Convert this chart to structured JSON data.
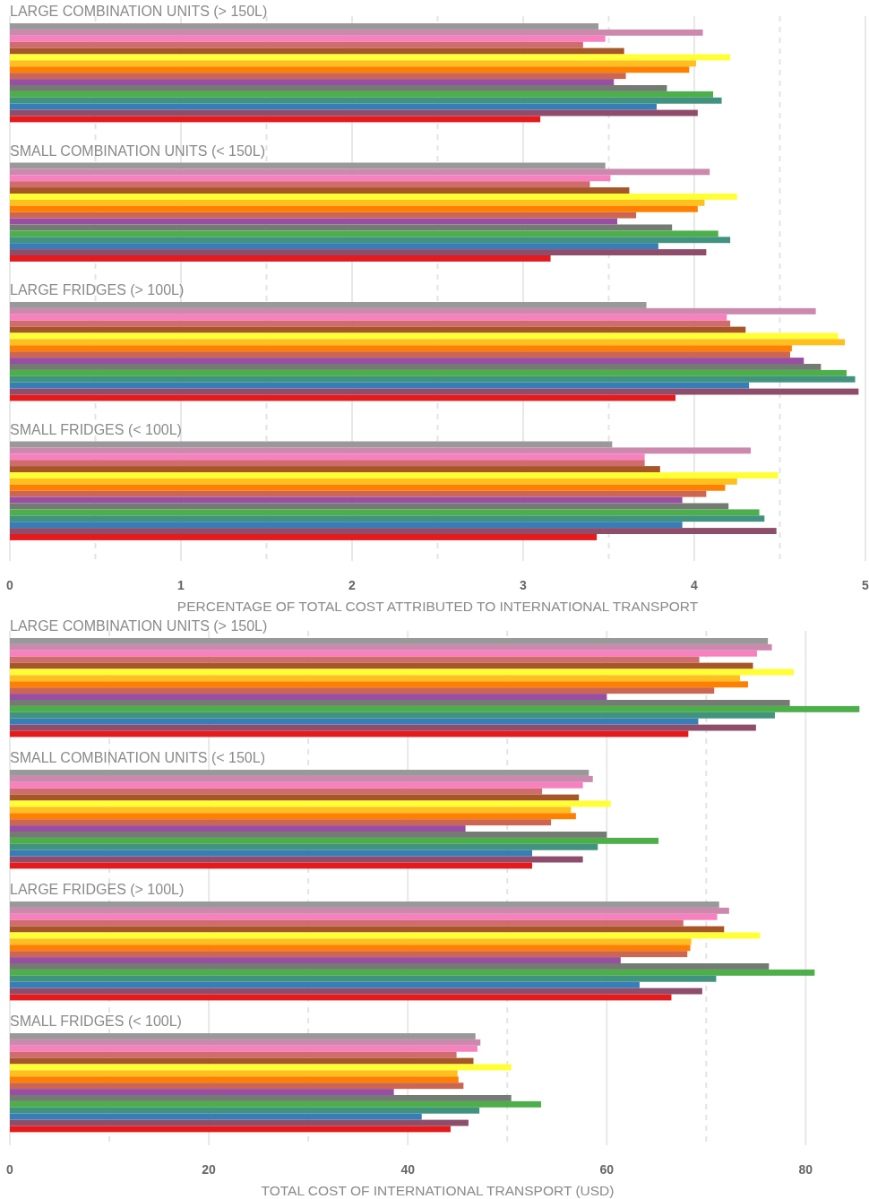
{
  "chart_data": [
    {
      "type": "bar",
      "orientation": "horizontal",
      "xlabel": "PERCENTAGE OF TOTAL COST ATTRIBUTED TO INTERNATIONAL TRANSPORT",
      "categories": [
        "LARGE COMBINATION UNITS (> 150L)",
        "SMALL COMBINATION UNITS (< 150L)",
        "LARGE FRIDGES (> 100L)",
        "SMALL FRIDGES (< 100L)"
      ],
      "xlim": [
        0,
        5
      ],
      "xticks": [
        0,
        {
          "value": 0.5,
          "label": null
        },
        1,
        {
          "value": 1.5,
          "label": null
        },
        2,
        {
          "value": 2.5,
          "label": null
        },
        3,
        {
          "value": 3.5,
          "label": null
        },
        4,
        {
          "value": 4.5,
          "label": null
        },
        5
      ],
      "grid": "x",
      "series": [
        {
          "color": "#999999",
          "values": [
            3.44,
            3.48,
            3.72,
            3.52
          ]
        },
        {
          "color": "#cc89ad",
          "values": [
            4.05,
            4.09,
            4.71,
            4.33
          ]
        },
        {
          "color": "#f781bf",
          "values": [
            3.48,
            3.51,
            4.19,
            3.71
          ]
        },
        {
          "color": "#d06b6e",
          "values": [
            3.35,
            3.39,
            4.21,
            3.71
          ]
        },
        {
          "color": "#a65628",
          "values": [
            3.59,
            3.62,
            4.3,
            3.8
          ]
        },
        {
          "color": "#ffff33",
          "values": [
            4.21,
            4.25,
            4.84,
            4.49
          ]
        },
        {
          "color": "#ffbf1f",
          "values": [
            4.01,
            4.06,
            4.88,
            4.25
          ]
        },
        {
          "color": "#ff7f00",
          "values": [
            3.97,
            4.02,
            4.57,
            4.18
          ]
        },
        {
          "color": "#cc6650",
          "values": [
            3.6,
            3.66,
            4.56,
            4.07
          ]
        },
        {
          "color": "#984ea3",
          "values": [
            3.53,
            3.55,
            4.64,
            3.93
          ]
        },
        {
          "color": "#737b72",
          "values": [
            3.84,
            3.87,
            4.74,
            4.2
          ]
        },
        {
          "color": "#4daf4a",
          "values": [
            4.11,
            4.14,
            4.89,
            4.38
          ]
        },
        {
          "color": "#41937f",
          "values": [
            4.16,
            4.21,
            4.94,
            4.41
          ]
        },
        {
          "color": "#377eb8",
          "values": [
            3.78,
            3.79,
            4.32,
            3.93
          ]
        },
        {
          "color": "#8e4d6a",
          "values": [
            4.02,
            4.07,
            4.96,
            4.48
          ]
        },
        {
          "color": "#e41a1c",
          "values": [
            3.1,
            3.16,
            3.89,
            3.43
          ]
        }
      ]
    },
    {
      "type": "bar",
      "orientation": "horizontal",
      "xlabel": "TOTAL COST OF INTERNATIONAL TRANSPORT (USD)",
      "categories": [
        "LARGE COMBINATION UNITS (> 150L)",
        "SMALL COMBINATION UNITS (< 150L)",
        "LARGE FRIDGES (> 100L)",
        "SMALL FRIDGES (< 100L)"
      ],
      "xlim": [
        0,
        86
      ],
      "xticks": [
        0,
        {
          "value": 10,
          "label": null
        },
        20,
        {
          "value": 30,
          "label": null
        },
        40,
        {
          "value": 50,
          "label": null
        },
        60,
        {
          "value": 70,
          "label": null
        },
        80
      ],
      "grid": "x",
      "series": [
        {
          "color": "#999999",
          "values": [
            76.2,
            58.2,
            71.3,
            46.8
          ]
        },
        {
          "color": "#cc89ad",
          "values": [
            76.6,
            58.6,
            72.3,
            47.3
          ]
        },
        {
          "color": "#f781bf",
          "values": [
            75.1,
            57.6,
            71.1,
            47.0
          ]
        },
        {
          "color": "#d06b6e",
          "values": [
            69.3,
            53.5,
            67.7,
            44.9
          ]
        },
        {
          "color": "#a65628",
          "values": [
            74.7,
            57.2,
            71.8,
            46.6
          ]
        },
        {
          "color": "#ffff33",
          "values": [
            78.8,
            60.4,
            75.4,
            50.4
          ]
        },
        {
          "color": "#ffbf1f",
          "values": [
            73.4,
            56.4,
            68.5,
            45.0
          ]
        },
        {
          "color": "#ff7f00",
          "values": [
            74.2,
            56.9,
            68.4,
            45.1
          ]
        },
        {
          "color": "#cc6650",
          "values": [
            70.8,
            54.4,
            68.1,
            45.6
          ]
        },
        {
          "color": "#984ea3",
          "values": [
            60.0,
            45.8,
            61.4,
            38.6
          ]
        },
        {
          "color": "#737b72",
          "values": [
            78.4,
            60.0,
            76.3,
            50.4
          ]
        },
        {
          "color": "#4daf4a",
          "values": [
            85.4,
            65.2,
            80.9,
            53.4
          ]
        },
        {
          "color": "#41937f",
          "values": [
            76.9,
            59.1,
            71.0,
            47.2
          ]
        },
        {
          "color": "#377eb8",
          "values": [
            69.2,
            52.5,
            63.3,
            41.4
          ]
        },
        {
          "color": "#8e4d6a",
          "values": [
            75.0,
            57.6,
            69.6,
            46.1
          ]
        },
        {
          "color": "#e41a1c",
          "values": [
            68.2,
            52.5,
            66.5,
            44.3
          ]
        }
      ]
    }
  ]
}
